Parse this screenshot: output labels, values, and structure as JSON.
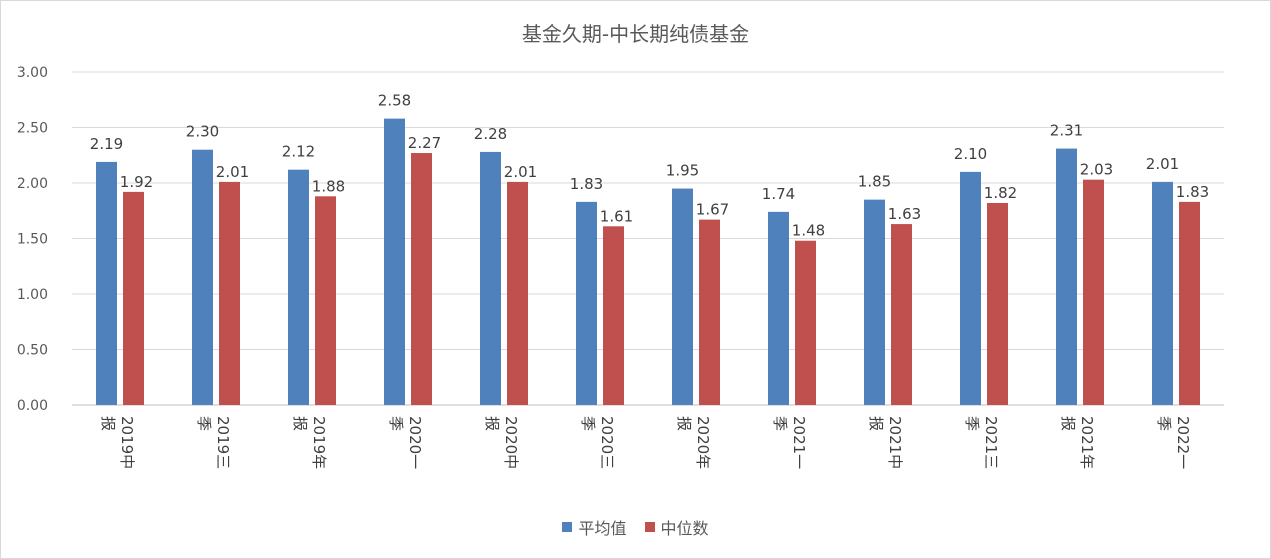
{
  "chart_data": {
    "type": "bar",
    "title": "基金久期-中长期纯债基金",
    "categories": [
      "2019中报",
      "2019三季",
      "2019年报",
      "2020一季",
      "2020中报",
      "2020三季",
      "2020年报",
      "2021一季",
      "2021中报",
      "2021三季",
      "2021年报",
      "2022一季"
    ],
    "category_lines": [
      [
        "2019中",
        "报"
      ],
      [
        "2019三",
        "季"
      ],
      [
        "2019年",
        "报"
      ],
      [
        "2020一",
        "季"
      ],
      [
        "2020中",
        "报"
      ],
      [
        "2020三",
        "季"
      ],
      [
        "2020年",
        "报"
      ],
      [
        "2021一",
        "季"
      ],
      [
        "2021中",
        "报"
      ],
      [
        "2021三",
        "季"
      ],
      [
        "2021年",
        "报"
      ],
      [
        "2022一",
        "季"
      ]
    ],
    "series": [
      {
        "name": "平均值",
        "color": "#4f81bd",
        "values": [
          2.19,
          2.3,
          2.12,
          2.58,
          2.28,
          1.83,
          1.95,
          1.74,
          1.85,
          2.1,
          2.31,
          2.01
        ]
      },
      {
        "name": "中位数",
        "color": "#c0504d",
        "values": [
          1.92,
          2.01,
          1.88,
          2.27,
          2.01,
          1.61,
          1.67,
          1.48,
          1.63,
          1.82,
          2.03,
          1.83
        ]
      }
    ],
    "ylim": [
      0,
      3
    ],
    "yticks": [
      "0.00",
      "0.50",
      "1.00",
      "1.50",
      "2.00",
      "2.50",
      "3.00"
    ],
    "grid": true,
    "legend_position": "bottom"
  }
}
